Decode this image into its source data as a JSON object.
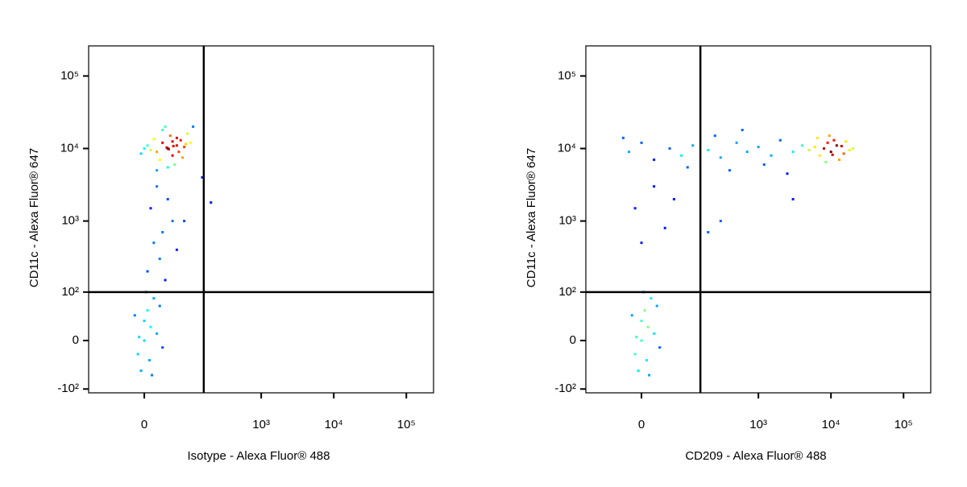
{
  "chart_data": [
    {
      "type": "scatter",
      "xlabel": "Isotype - Alexa Fluor® 488",
      "ylabel": "CD11c - Alexa Fluor® 647",
      "xscale": "biexponential",
      "yscale": "biexponential",
      "colormap": "jet",
      "xlim": [
        -139,
        237000
      ],
      "ylim": [
        -114,
        260000
      ],
      "xticks": [
        0,
        {
          "value": 1000,
          "label": "10³"
        },
        {
          "value": 10000,
          "label": "10⁴"
        },
        {
          "value": 100000,
          "label": "10⁵"
        }
      ],
      "yticks": [
        {
          "value": -100,
          "label": "-10²"
        },
        0,
        {
          "value": 100,
          "label": "10²"
        },
        {
          "value": 1000,
          "label": "10³"
        },
        {
          "value": 10000,
          "label": "10⁴"
        },
        {
          "value": 100000,
          "label": "10⁵"
        }
      ],
      "gates": {
        "x": 158,
        "y": 100
      },
      "x": [
        40,
        20,
        60,
        30,
        50,
        10,
        70,
        45,
        25,
        80,
        35,
        55,
        5,
        90,
        15,
        65,
        40,
        100,
        -5,
        30,
        75,
        50,
        20,
        110,
        60,
        0,
        85,
        42,
        38,
        52,
        20,
        40,
        10,
        50,
        30,
        15,
        60,
        25,
        5,
        35,
        80,
        150,
        200,
        0,
        10,
        -10,
        5,
        20,
        -5,
        15,
        0,
        30,
        -15,
        8,
        25,
        -8,
        12,
        3
      ],
      "y": [
        10000,
        9000,
        11000,
        12000,
        8000,
        9500,
        13000,
        15000,
        7000,
        10500,
        20000,
        6000,
        11000,
        16000,
        13500,
        9000,
        5500,
        12000,
        8500,
        18000,
        7500,
        12500,
        5000,
        20000,
        14000,
        10000,
        11500,
        9800,
        10300,
        10800,
        3000,
        2000,
        1500,
        1000,
        700,
        500,
        400,
        300,
        200,
        150,
        1000,
        4000,
        1800,
        0,
        20,
        -20,
        50,
        10,
        -50,
        80,
        30,
        -10,
        40,
        -30,
        60,
        5,
        -60,
        100
      ]
    },
    {
      "type": "scatter",
      "xlabel": "CD209 - Alexa Fluor® 488",
      "ylabel": "CD11c - Alexa Fluor® 647",
      "xscale": "biexponential",
      "yscale": "biexponential",
      "colormap": "jet",
      "xlim": [
        -139,
        237000
      ],
      "ylim": [
        -114,
        260000
      ],
      "xticks": [
        0,
        {
          "value": 1000,
          "label": "10³"
        },
        {
          "value": 10000,
          "label": "10⁴"
        },
        {
          "value": 100000,
          "label": "10⁵"
        }
      ],
      "yticks": [
        {
          "value": -100,
          "label": "-10²"
        },
        0,
        {
          "value": 100,
          "label": "10²"
        },
        {
          "value": 1000,
          "label": "10³"
        },
        {
          "value": 10000,
          "label": "10⁴"
        },
        {
          "value": 100000,
          "label": "10⁵"
        }
      ],
      "gates": {
        "x": 155,
        "y": 100
      },
      "x": [
        8000,
        10000,
        12000,
        6000,
        15000,
        9000,
        7000,
        11000,
        5000,
        20000,
        13000,
        4000,
        9500,
        16000,
        3000,
        8500,
        18000,
        6500,
        10500,
        14000,
        -20,
        0,
        20,
        50,
        80,
        120,
        200,
        300,
        500,
        700,
        1000,
        1500,
        2000,
        400,
        1200,
        2500,
        250,
        100,
        -30,
        600,
        20,
        -10,
        40,
        0,
        60,
        200,
        300,
        3000,
        0,
        10,
        -10,
        5,
        20,
        -5,
        15,
        0,
        30,
        -15,
        8,
        25,
        -8,
        12,
        3
      ],
      "y": [
        10000,
        9000,
        11000,
        10500,
        8500,
        12000,
        8000,
        13000,
        9500,
        10000,
        7000,
        11000,
        15000,
        12500,
        9000,
        6500,
        9500,
        14000,
        8200,
        10800,
        9000,
        12000,
        7000,
        10000,
        8000,
        11000,
        9500,
        7500,
        12000,
        9000,
        10500,
        8000,
        13000,
        5000,
        6000,
        4500,
        15000,
        5500,
        14000,
        18000,
        3000,
        1500,
        800,
        500,
        2000,
        700,
        1000,
        2000,
        0,
        20,
        -20,
        50,
        10,
        -50,
        80,
        30,
        -10,
        40,
        -30,
        60,
        5,
        -60,
        100
      ]
    }
  ]
}
